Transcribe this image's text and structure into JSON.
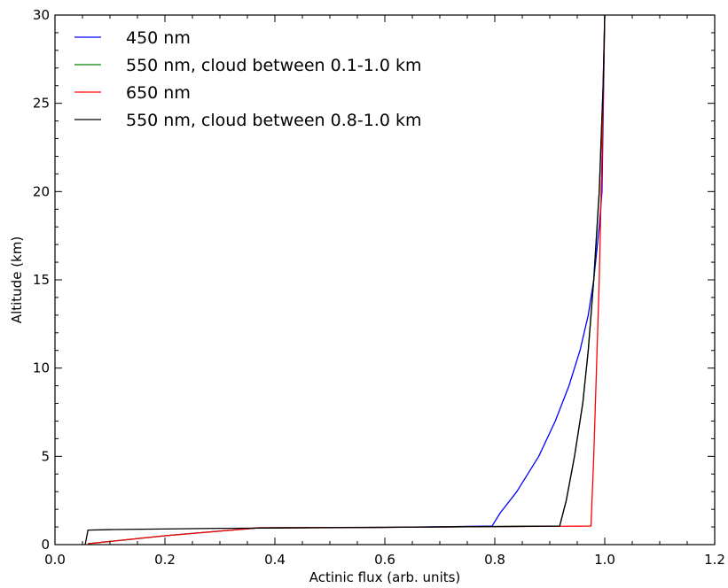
{
  "chart_data": {
    "type": "line",
    "xlabel": "Actinic flux (arb. units)",
    "ylabel": "Altitude (km)",
    "xlim": [
      0.0,
      1.2
    ],
    "ylim": [
      0,
      30
    ],
    "xticks": [
      0.0,
      0.2,
      0.4,
      0.6,
      0.8,
      1.0,
      1.2
    ],
    "xtick_labels": [
      "0.0",
      "0.2",
      "0.4",
      "0.6",
      "0.8",
      "1.0",
      "1.2"
    ],
    "yticks": [
      0,
      5,
      10,
      15,
      20,
      25,
      30
    ],
    "ytick_labels": [
      "0",
      "5",
      "10",
      "15",
      "20",
      "25",
      "30"
    ],
    "grid": false,
    "legend_position": "top-left",
    "series": [
      {
        "name": "450 nm",
        "color": "#0000ff",
        "x": [
          0.06,
          0.2,
          0.37,
          0.6,
          0.795,
          0.81,
          0.84,
          0.88,
          0.91,
          0.935,
          0.955,
          0.97,
          0.98,
          0.99,
          0.995,
          1.0
        ],
        "y": [
          0.05,
          0.5,
          0.95,
          0.98,
          1.05,
          1.8,
          3.0,
          5.0,
          7.0,
          9.0,
          11.0,
          13.0,
          15.0,
          18.0,
          20.0,
          30.0
        ]
      },
      {
        "name": "550 nm, cloud between 0.1-1.0 km",
        "color": "#008000",
        "x": [
          0.06,
          0.2,
          0.37,
          0.6,
          0.918,
          0.93,
          0.945,
          0.96,
          0.97,
          0.98,
          0.99,
          0.997,
          1.0
        ],
        "y": [
          0.05,
          0.5,
          0.95,
          0.98,
          1.05,
          2.5,
          5.0,
          8.0,
          11.0,
          15.0,
          20.0,
          26.0,
          30.0
        ]
      },
      {
        "name": "650 nm",
        "color": "#ff0000",
        "x": [
          0.06,
          0.2,
          0.37,
          0.6,
          0.975,
          0.98,
          0.985,
          0.99,
          0.995,
          1.0
        ],
        "y": [
          0.05,
          0.5,
          0.95,
          0.98,
          1.05,
          5.0,
          10.0,
          15.0,
          22.0,
          30.0
        ]
      },
      {
        "name": "550 nm, cloud between 0.8-1.0 km",
        "color": "#000000",
        "x": [
          0.055,
          0.06,
          0.1,
          0.3,
          0.6,
          0.918,
          0.93,
          0.945,
          0.96,
          0.97,
          0.98,
          0.99,
          0.997,
          1.0
        ],
        "y": [
          0.0,
          0.82,
          0.85,
          0.92,
          0.98,
          1.05,
          2.5,
          5.0,
          8.0,
          11.0,
          15.0,
          20.0,
          26.0,
          30.0
        ]
      }
    ]
  }
}
